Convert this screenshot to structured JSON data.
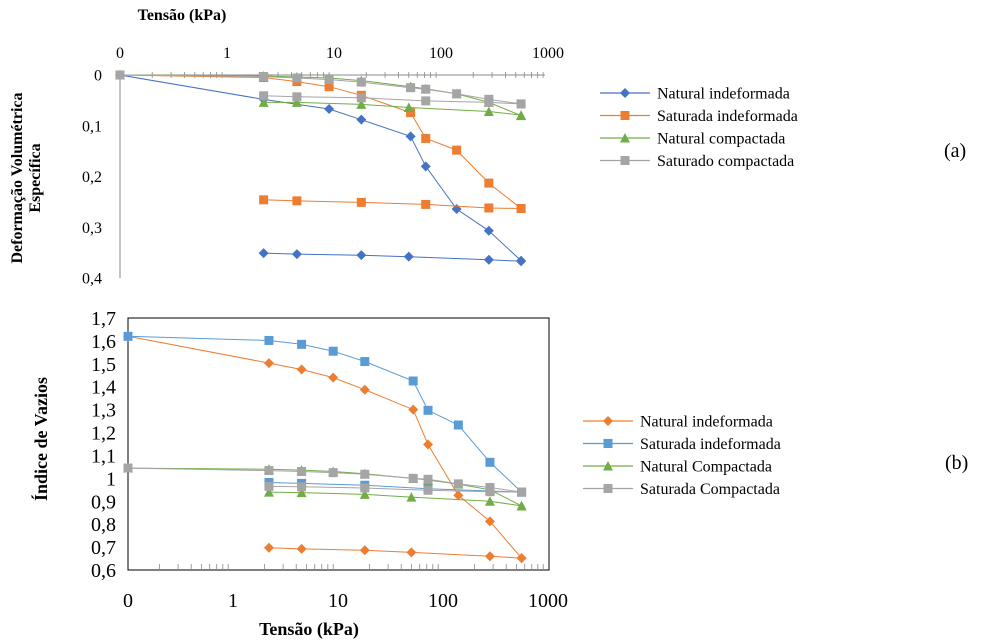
{
  "chart_data": [
    {
      "id": "a",
      "type": "line",
      "panel_label": "(a)",
      "xlabel": "Tensão (kPa)",
      "ylabel_lines": [
        "Deformação Volumétrica",
        "Específica"
      ],
      "x_scale": "log",
      "x_ticks": [
        "0",
        "1",
        "10",
        "100",
        "1000"
      ],
      "y_ticks": [
        "0",
        "0,1",
        "0,2",
        "0,3",
        "0,4"
      ],
      "ylim": [
        0,
        0.4
      ],
      "y_inverted": true,
      "x_axis_position": "top",
      "legend_position": "right",
      "series": [
        {
          "name": "Natural indeformada",
          "color": "#4472C4",
          "marker": "diamond",
          "points": [
            [
              0.1,
              0
            ],
            [
              2.2,
              0.048
            ],
            [
              9,
              0.067
            ],
            [
              18,
              0.088
            ],
            [
              52,
              0.121
            ],
            [
              72,
              0.18
            ],
            [
              140,
              0.264
            ],
            [
              280,
              0.307
            ],
            [
              560,
              0.366
            ]
          ],
          "unload": [
            [
              2.2,
              0.351
            ],
            [
              4.5,
              0.353
            ],
            [
              18,
              0.355
            ],
            [
              50,
              0.358
            ],
            [
              280,
              0.364
            ],
            [
              560,
              0.367
            ]
          ]
        },
        {
          "name": "Saturada indeformada",
          "color": "#ED7D31",
          "marker": "square",
          "points": [
            [
              0.1,
              0
            ],
            [
              2.2,
              0.005
            ],
            [
              4.5,
              0.013
            ],
            [
              9,
              0.023
            ],
            [
              18,
              0.04
            ],
            [
              52,
              0.074
            ],
            [
              72,
              0.125
            ],
            [
              140,
              0.148
            ],
            [
              280,
              0.213
            ],
            [
              560,
              0.263
            ]
          ],
          "unload": [
            [
              2.2,
              0.246
            ],
            [
              4.5,
              0.248
            ],
            [
              18,
              0.251
            ],
            [
              72,
              0.255
            ],
            [
              280,
              0.262
            ],
            [
              560,
              0.263
            ]
          ]
        },
        {
          "name": "Natural compactada",
          "color": "#70AD47",
          "marker": "triangle",
          "points": [
            [
              0.1,
              0
            ],
            [
              2.2,
              0.002
            ],
            [
              4.5,
              0.004
            ],
            [
              9,
              0.006
            ],
            [
              18,
              0.011
            ],
            [
              52,
              0.023
            ],
            [
              72,
              0.027
            ],
            [
              140,
              0.037
            ],
            [
              280,
              0.054
            ],
            [
              560,
              0.08
            ]
          ],
          "unload": [
            [
              2.2,
              0.054
            ],
            [
              4.5,
              0.054
            ],
            [
              18,
              0.058
            ],
            [
              50,
              0.064
            ],
            [
              280,
              0.072
            ],
            [
              560,
              0.079
            ]
          ]
        },
        {
          "name": "Saturado compactada",
          "color": "#A5A5A5",
          "marker": "square",
          "points": [
            [
              0.1,
              0
            ],
            [
              2.2,
              0.003
            ],
            [
              4.5,
              0.006
            ],
            [
              9,
              0.009
            ],
            [
              18,
              0.014
            ],
            [
              52,
              0.025
            ],
            [
              72,
              0.028
            ],
            [
              140,
              0.037
            ],
            [
              280,
              0.048
            ],
            [
              560,
              0.057
            ]
          ],
          "unload": [
            [
              2.2,
              0.041
            ],
            [
              4.5,
              0.043
            ],
            [
              18,
              0.045
            ],
            [
              72,
              0.051
            ],
            [
              280,
              0.054
            ],
            [
              560,
              0.057
            ]
          ]
        }
      ]
    },
    {
      "id": "b",
      "type": "line",
      "panel_label": "(b)",
      "xlabel": "Tensão (kPa)",
      "ylabel": "Índice de Vazios",
      "x_scale": "log",
      "x_ticks": [
        "0",
        "1",
        "10",
        "100",
        "1000"
      ],
      "y_ticks": [
        "1,7",
        "1,6",
        "1,5",
        "1,4",
        "1,3",
        "1,2",
        "1,1",
        "1",
        "0,9",
        "0,8",
        "0,7",
        "0,6"
      ],
      "ylim": [
        0.6,
        1.7
      ],
      "x_axis_position": "bottom",
      "legend_position": "right",
      "series": [
        {
          "name": "Natural indeformada",
          "color": "#ED7D31",
          "marker": "diamond",
          "points": [
            [
              0.1,
              1.62
            ],
            [
              2.2,
              1.503
            ],
            [
              4.5,
              1.475
            ],
            [
              9,
              1.44
            ],
            [
              18,
              1.387
            ],
            [
              52,
              1.3
            ],
            [
              72,
              1.148
            ],
            [
              140,
              0.926
            ],
            [
              280,
              0.812
            ],
            [
              560,
              0.652
            ]
          ],
          "unload": [
            [
              2.2,
              0.697
            ],
            [
              4.5,
              0.692
            ],
            [
              18,
              0.686
            ],
            [
              50,
              0.677
            ],
            [
              280,
              0.66
            ],
            [
              560,
              0.652
            ]
          ]
        },
        {
          "name": "Saturada indeformada",
          "color": "#5B9BD5",
          "marker": "square",
          "points": [
            [
              0.1,
              1.62
            ],
            [
              2.2,
              1.602
            ],
            [
              4.5,
              1.585
            ],
            [
              9,
              1.555
            ],
            [
              18,
              1.51
            ],
            [
              52,
              1.425
            ],
            [
              72,
              1.297
            ],
            [
              140,
              1.233
            ],
            [
              280,
              1.07
            ],
            [
              560,
              0.94
            ]
          ],
          "unload": [
            [
              2.2,
              0.982
            ],
            [
              4.5,
              0.978
            ],
            [
              18,
              0.97
            ],
            [
              72,
              0.955
            ],
            [
              280,
              0.945
            ],
            [
              560,
              0.94
            ]
          ]
        },
        {
          "name": "Natural Compactada",
          "color": "#70AD47",
          "marker": "triangle",
          "points": [
            [
              0.1,
              1.045
            ],
            [
              2.2,
              1.04
            ],
            [
              4.5,
              1.036
            ],
            [
              9,
              1.03
            ],
            [
              18,
              1.02
            ],
            [
              52,
              1.0
            ],
            [
              72,
              0.993
            ],
            [
              140,
              0.975
            ],
            [
              280,
              0.95
            ],
            [
              560,
              0.88
            ]
          ],
          "unload": [
            [
              2.2,
              0.94
            ],
            [
              4.5,
              0.938
            ],
            [
              18,
              0.93
            ],
            [
              50,
              0.918
            ],
            [
              280,
              0.9
            ],
            [
              560,
              0.88
            ]
          ]
        },
        {
          "name": "Saturada Compactada",
          "color": "#A5A5A5",
          "marker": "square",
          "points": [
            [
              0.1,
              1.045
            ],
            [
              2.2,
              1.034
            ],
            [
              4.5,
              1.03
            ],
            [
              9,
              1.025
            ],
            [
              18,
              1.018
            ],
            [
              52,
              1.0
            ],
            [
              72,
              0.996
            ],
            [
              140,
              0.976
            ],
            [
              280,
              0.96
            ],
            [
              560,
              0.94
            ]
          ],
          "unload": [
            [
              2.2,
              0.965
            ],
            [
              4.5,
              0.963
            ],
            [
              18,
              0.958
            ],
            [
              72,
              0.948
            ],
            [
              280,
              0.942
            ],
            [
              560,
              0.94
            ]
          ]
        }
      ]
    }
  ]
}
